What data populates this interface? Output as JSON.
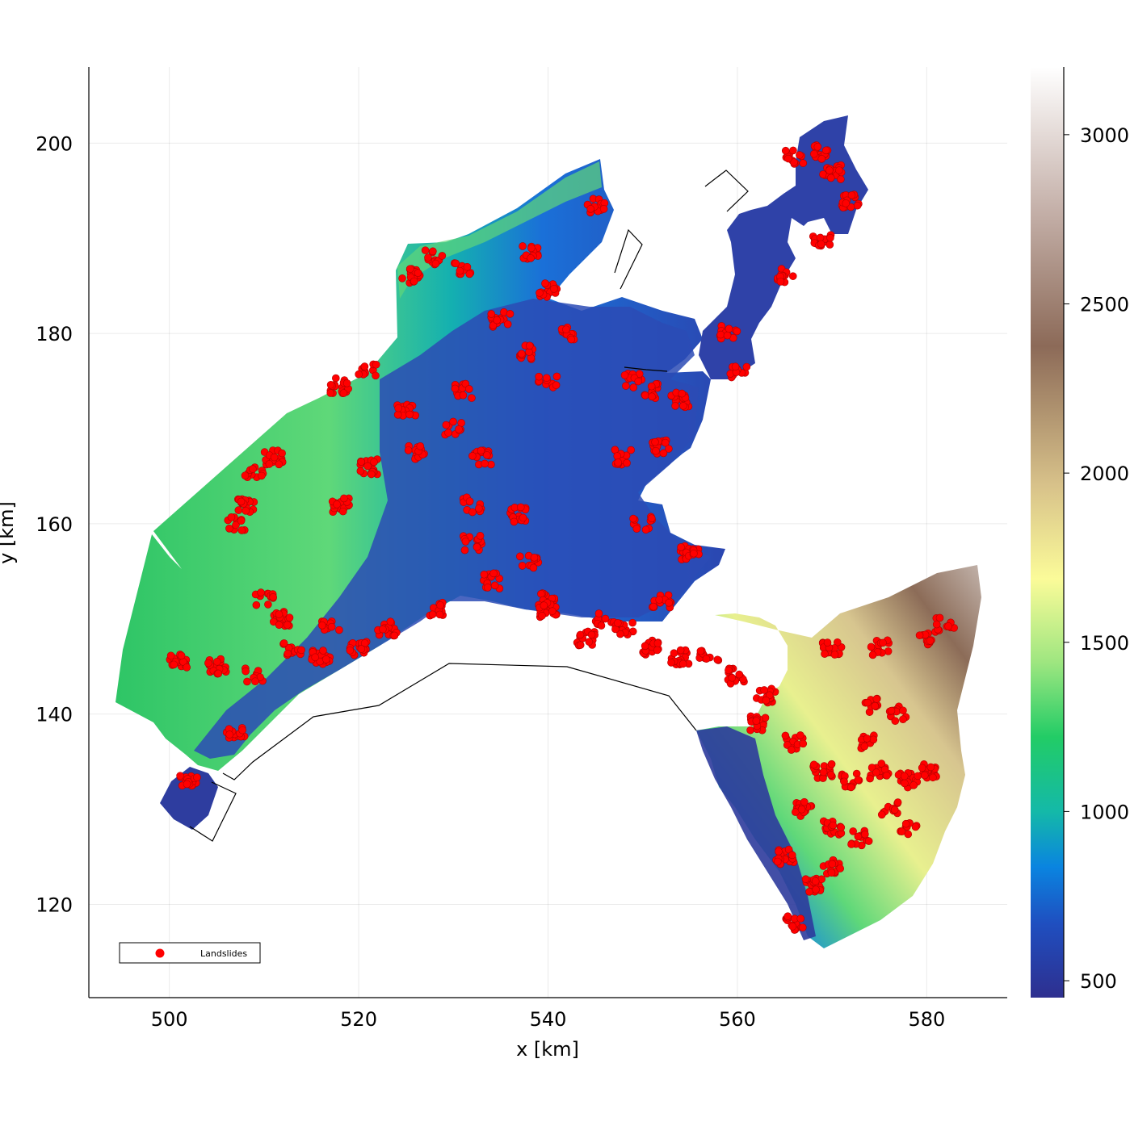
{
  "chart_data": {
    "type": "scatter",
    "title": "",
    "xlabel": "x [km]",
    "ylabel": "y [km]",
    "xlim": [
      491.5,
      588.5
    ],
    "ylim": [
      110.2,
      208
    ],
    "xticks": [
      "500",
      "520",
      "540",
      "560",
      "580"
    ],
    "yticks": [
      "120",
      "140",
      "160",
      "180",
      "200"
    ],
    "grid": true,
    "legend": {
      "position": "bottom-left",
      "entries": [
        "Landslides"
      ]
    },
    "colorbar": {
      "range": [
        450,
        3200
      ],
      "ticks": [
        "500",
        "1000",
        "1500",
        "2000",
        "2500",
        "3000"
      ],
      "colormap": [
        "#2e2f8f",
        "#0a84e0",
        "#14b9a8",
        "#22cc66",
        "#9ee680",
        "#fbfb99",
        "#d8c28a",
        "#8c6a58",
        "#c6b2ab",
        "#ffffff"
      ]
    },
    "series": [
      {
        "name": "Landslides",
        "color": "#ff0000",
        "clusters": [
          [
            566,
            198.5
          ],
          [
            569,
            199
          ],
          [
            570,
            197
          ],
          [
            572,
            194
          ],
          [
            569,
            190
          ],
          [
            525.5,
            186
          ],
          [
            528,
            188
          ],
          [
            531,
            187
          ],
          [
            538,
            188.5
          ],
          [
            540,
            184.5
          ],
          [
            535,
            181.5
          ],
          [
            538,
            178
          ],
          [
            542,
            180
          ],
          [
            540,
            175
          ],
          [
            545,
            193.5
          ],
          [
            518,
            174.5
          ],
          [
            521,
            176
          ],
          [
            525,
            172
          ],
          [
            526,
            167.5
          ],
          [
            521,
            166
          ],
          [
            509,
            165.5
          ],
          [
            507,
            160
          ],
          [
            508,
            162
          ],
          [
            511,
            167
          ],
          [
            518,
            162
          ],
          [
            531,
            174
          ],
          [
            530,
            170
          ],
          [
            533,
            167
          ],
          [
            532,
            162
          ],
          [
            532,
            158
          ],
          [
            537,
            161
          ],
          [
            538,
            156
          ],
          [
            540,
            152
          ],
          [
            546,
            150
          ],
          [
            549,
            175
          ],
          [
            551,
            174
          ],
          [
            554,
            173
          ],
          [
            552,
            168
          ],
          [
            548,
            167
          ],
          [
            550,
            160
          ],
          [
            555,
            157
          ],
          [
            552,
            152
          ],
          [
            560,
            176
          ],
          [
            559,
            180
          ],
          [
            565,
            186
          ],
          [
            505,
            145
          ],
          [
            509,
            144
          ],
          [
            513,
            147
          ],
          [
            517,
            149
          ],
          [
            520,
            147
          ],
          [
            516,
            146
          ],
          [
            523,
            149
          ],
          [
            528,
            151
          ],
          [
            534,
            154
          ],
          [
            540,
            151
          ],
          [
            544,
            148
          ],
          [
            548,
            149
          ],
          [
            551,
            147
          ],
          [
            554,
            146
          ],
          [
            557,
            146
          ],
          [
            560,
            144
          ],
          [
            563,
            142
          ],
          [
            562,
            139
          ],
          [
            566,
            137
          ],
          [
            569,
            134
          ],
          [
            572,
            133
          ],
          [
            575,
            134
          ],
          [
            578,
            133
          ],
          [
            580,
            134
          ],
          [
            567,
            130
          ],
          [
            570,
            128
          ],
          [
            573,
            127
          ],
          [
            576,
            130
          ],
          [
            578,
            128
          ],
          [
            565,
            125
          ],
          [
            568,
            122
          ],
          [
            570,
            124
          ],
          [
            566,
            118
          ],
          [
            570,
            147
          ],
          [
            575,
            147
          ],
          [
            580,
            148
          ],
          [
            582,
            149.5
          ],
          [
            574,
            141
          ],
          [
            577,
            140
          ],
          [
            574,
            137
          ],
          [
            507,
            138
          ],
          [
            502,
            133
          ],
          [
            501,
            145.5
          ],
          [
            510,
            152
          ],
          [
            512,
            150
          ]
        ]
      }
    ],
    "region_label": ""
  }
}
